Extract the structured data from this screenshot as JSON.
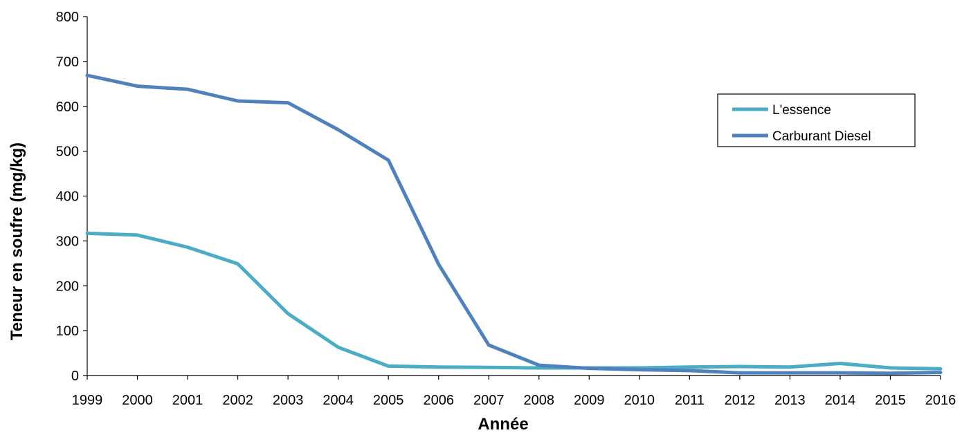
{
  "chart_data": {
    "type": "line",
    "title": "",
    "xlabel": "Année",
    "ylabel": "Teneur en soufre (mg/kg)",
    "ylim": [
      0,
      800
    ],
    "yticks": [
      "0",
      "100",
      "200",
      "300",
      "400",
      "500",
      "600",
      "700",
      "800"
    ],
    "categories": [
      "1999",
      "2000",
      "2001",
      "2002",
      "2003",
      "2004",
      "2005",
      "2006",
      "2007",
      "2008",
      "2009",
      "2010",
      "2011",
      "2012",
      "2013",
      "2014",
      "2015",
      "2016"
    ],
    "grid": false,
    "legend_position": "right",
    "series": [
      {
        "name": "L'essence",
        "color": "#4BACC6",
        "values": [
          317,
          313,
          286,
          249,
          138,
          63,
          21,
          19,
          18,
          17,
          17,
          17,
          19,
          20,
          19,
          27,
          17,
          15
        ]
      },
      {
        "name": "Carburant Diesel",
        "color": "#4F81BD",
        "values": [
          669,
          645,
          638,
          612,
          608,
          548,
          480,
          248,
          68,
          23,
          16,
          13,
          11,
          6,
          6,
          6,
          5,
          7
        ]
      }
    ]
  }
}
